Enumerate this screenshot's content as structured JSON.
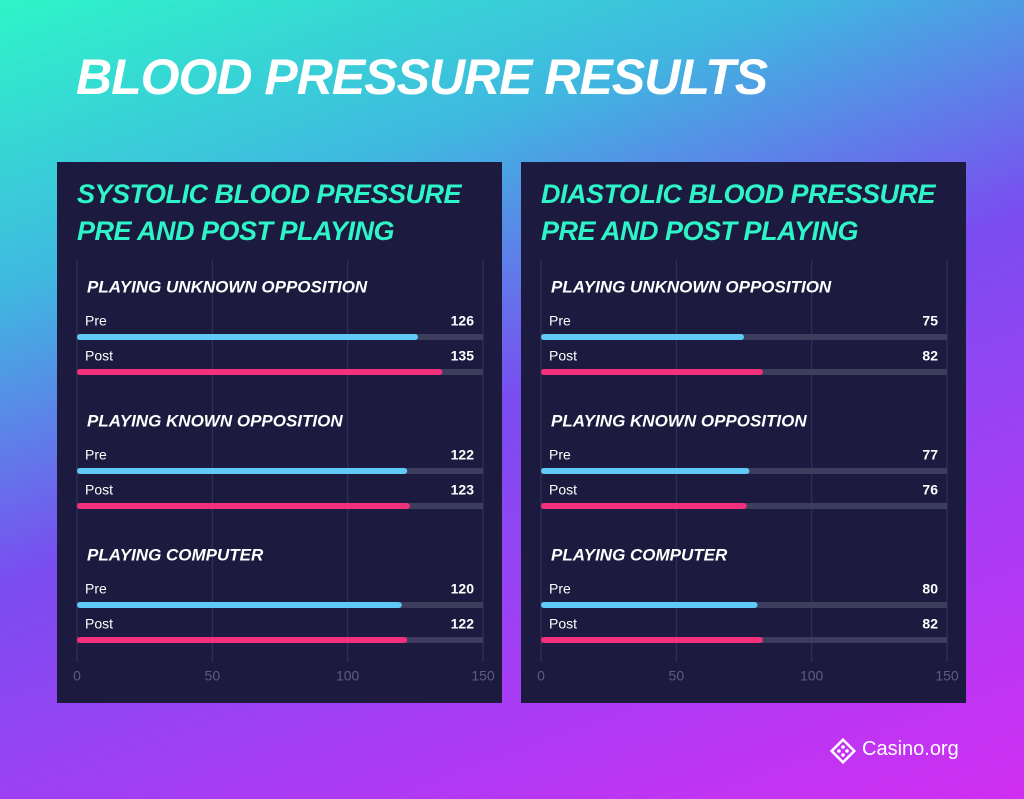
{
  "title": "BLOOD PRESSURE RESULTS",
  "logo": "Casino.org",
  "chart_data": [
    {
      "type": "bar",
      "orientation": "horizontal",
      "title": "SYSTOLIC BLOOD PRESSURE\nPRE AND POST PLAYING",
      "categories": [
        "PLAYING UNKNOWN OPPOSITION",
        "PLAYING KNOWN OPPOSITION",
        "PLAYING COMPUTER"
      ],
      "series": [
        {
          "name": "Pre",
          "color": "#5fcaf6",
          "values": [
            126,
            122,
            120
          ]
        },
        {
          "name": "Post",
          "color": "#f2307b",
          "values": [
            135,
            123,
            122
          ]
        }
      ],
      "xlim": [
        0,
        150
      ],
      "xticks": [
        0,
        50,
        100,
        150
      ],
      "grid": true
    },
    {
      "type": "bar",
      "orientation": "horizontal",
      "title": "DIASTOLIC BLOOD PRESSURE\nPRE AND POST PLAYING",
      "categories": [
        "PLAYING UNKNOWN OPPOSITION",
        "PLAYING KNOWN OPPOSITION",
        "PLAYING COMPUTER"
      ],
      "series": [
        {
          "name": "Pre",
          "color": "#5fcaf6",
          "values": [
            75,
            77,
            80
          ]
        },
        {
          "name": "Post",
          "color": "#f2307b",
          "values": [
            82,
            76,
            82
          ]
        }
      ],
      "xlim": [
        0,
        150
      ],
      "xticks": [
        0,
        50,
        100,
        150
      ],
      "grid": true
    }
  ]
}
